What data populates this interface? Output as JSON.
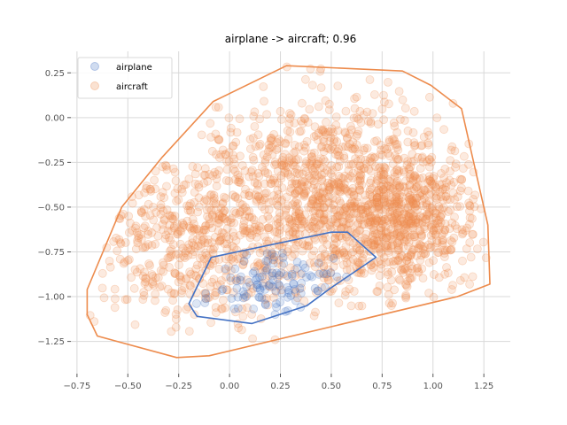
{
  "chart_data": {
    "type": "scatter",
    "title": "airplane -> aircraft; 0.96",
    "xlabel": "",
    "ylabel": "",
    "xlim": [
      -0.78,
      1.38
    ],
    "ylim": [
      -1.43,
      0.37
    ],
    "xticks": [
      -0.75,
      -0.5,
      -0.25,
      0.0,
      0.25,
      0.5,
      0.75,
      1.0,
      1.25
    ],
    "xtick_labels": [
      "−0.75",
      "−0.50",
      "−0.25",
      "0.00",
      "0.25",
      "0.50",
      "0.75",
      "1.00",
      "1.25"
    ],
    "yticks": [
      0.25,
      0.0,
      -0.25,
      -0.5,
      -0.75,
      -1.0,
      -1.25
    ],
    "ytick_labels": [
      "0.25",
      "0.00",
      "−0.25",
      "−0.50",
      "−0.75",
      "−1.00",
      "−1.25"
    ],
    "grid": true,
    "legend_position": "top-left",
    "series": [
      {
        "name": "airplane",
        "color": "#4472c4",
        "hull": [
          [
            0.72,
            -0.78
          ],
          [
            0.58,
            -0.64
          ],
          [
            0.5,
            -0.64
          ],
          [
            -0.09,
            -0.78
          ],
          [
            -0.2,
            -1.04
          ],
          [
            -0.16,
            -1.11
          ],
          [
            0.11,
            -1.15
          ],
          [
            0.38,
            -1.05
          ],
          [
            0.5,
            -0.95
          ]
        ],
        "clusters": [
          {
            "cx": 0.22,
            "cy": -0.93,
            "sx": 0.2,
            "sy": 0.09,
            "n": 110
          }
        ]
      },
      {
        "name": "aircraft",
        "color": "#ed8b4c",
        "hull": [
          [
            1.14,
            0.05
          ],
          [
            0.99,
            0.18
          ],
          [
            0.85,
            0.26
          ],
          [
            0.28,
            0.29
          ],
          [
            -0.08,
            0.09
          ],
          [
            -0.33,
            -0.22
          ],
          [
            -0.53,
            -0.5
          ],
          [
            -0.7,
            -0.96
          ],
          [
            -0.7,
            -1.1
          ],
          [
            -0.65,
            -1.22
          ],
          [
            -0.26,
            -1.34
          ],
          [
            -0.1,
            -1.33
          ],
          [
            1.12,
            -1.0
          ],
          [
            1.28,
            -0.93
          ],
          [
            1.27,
            -0.6
          ],
          [
            1.26,
            -0.55
          ]
        ],
        "clusters": [
          {
            "cx": 0.45,
            "cy": -0.45,
            "sx": 0.35,
            "sy": 0.28,
            "n": 1150
          },
          {
            "cx": 0.85,
            "cy": -0.55,
            "sx": 0.2,
            "sy": 0.2,
            "n": 550
          },
          {
            "cx": -0.25,
            "cy": -0.75,
            "sx": 0.22,
            "sy": 0.22,
            "n": 350
          }
        ]
      }
    ]
  }
}
